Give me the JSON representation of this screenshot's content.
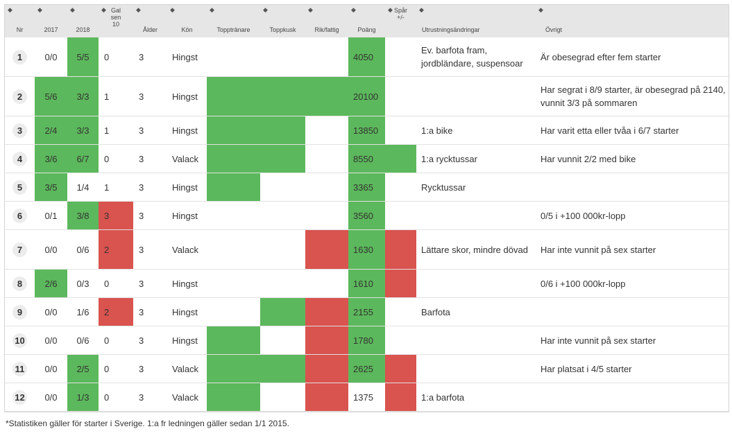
{
  "sort_icon": "sort-updown-icon",
  "colors": {
    "good": "#5cb85c",
    "bad": "#d9534f",
    "header_bg": "#e6e6e6"
  },
  "headers": {
    "nr": "Nr",
    "y2017": "2017",
    "y2018": "2018",
    "galsen": "Gal sen 10",
    "alder": "Ålder",
    "kon": "Kön",
    "topptranare": "Topptränare",
    "toppkusk": "Toppkusk",
    "rikfattig": "Rik/fattig",
    "poang": "Poäng",
    "spar": "Spår +/-",
    "utrustning": "Utrustningsändringar",
    "ovrigt": "Övrigt"
  },
  "rows": [
    {
      "nr": "1",
      "y2017": "0/0",
      "y2018": "5/5",
      "galsen": "0",
      "alder": "3",
      "kon": "Hingst",
      "poang": "4050",
      "utrustning": "Ev. barfota fram, jordbländare, suspensoar",
      "ovrigt": "Är obesegrad efter fem starter"
    },
    {
      "nr": "2",
      "y2017": "5/6",
      "y2018": "3/3",
      "galsen": "1",
      "alder": "3",
      "kon": "Hingst",
      "poang": "20100",
      "utrustning": "",
      "ovrigt": "Har segrat i 8/9 starter, är obesegrad på 2140, vunnit 3/3 på sommaren"
    },
    {
      "nr": "3",
      "y2017": "2/4",
      "y2018": "3/3",
      "galsen": "1",
      "alder": "3",
      "kon": "Hingst",
      "poang": "13850",
      "utrustning": "1:a bike",
      "ovrigt": "Har varit etta eller tvåa i 6/7 starter"
    },
    {
      "nr": "4",
      "y2017": "3/6",
      "y2018": "6/7",
      "galsen": "0",
      "alder": "3",
      "kon": "Valack",
      "poang": "8550",
      "utrustning": "1:a rycktussar",
      "ovrigt": "Har vunnit 2/2 med bike"
    },
    {
      "nr": "5",
      "y2017": "3/5",
      "y2018": "1/4",
      "galsen": "1",
      "alder": "3",
      "kon": "Hingst",
      "poang": "3365",
      "utrustning": "Rycktussar",
      "ovrigt": ""
    },
    {
      "nr": "6",
      "y2017": "0/1",
      "y2018": "3/8",
      "galsen": "3",
      "alder": "3",
      "kon": "Hingst",
      "poang": "3560",
      "utrustning": "",
      "ovrigt": "0/5 i +100 000kr-lopp"
    },
    {
      "nr": "7",
      "y2017": "0/0",
      "y2018": "0/6",
      "galsen": "2",
      "alder": "3",
      "kon": "Valack",
      "poang": "1630",
      "utrustning": "Lättare skor, mindre dövad",
      "ovrigt": "Har inte vunnit på sex starter"
    },
    {
      "nr": "8",
      "y2017": "2/6",
      "y2018": "0/3",
      "galsen": "0",
      "alder": "3",
      "kon": "Hingst",
      "poang": "1610",
      "utrustning": "",
      "ovrigt": "0/6 i +100 000kr-lopp"
    },
    {
      "nr": "9",
      "y2017": "0/0",
      "y2018": "1/6",
      "galsen": "2",
      "alder": "3",
      "kon": "Hingst",
      "poang": "2155",
      "utrustning": "Barfota",
      "ovrigt": ""
    },
    {
      "nr": "10",
      "y2017": "0/0",
      "y2018": "0/6",
      "galsen": "0",
      "alder": "3",
      "kon": "Hingst",
      "poang": "1780",
      "utrustning": "",
      "ovrigt": "Har inte vunnit på sex starter"
    },
    {
      "nr": "11",
      "y2017": "0/0",
      "y2018": "2/5",
      "galsen": "0",
      "alder": "3",
      "kon": "Valack",
      "poang": "2625",
      "utrustning": "",
      "ovrigt": "Har platsat i 4/5 starter"
    },
    {
      "nr": "12",
      "y2017": "0/0",
      "y2018": "1/3",
      "galsen": "0",
      "alder": "3",
      "kon": "Valack",
      "poang": "1375",
      "utrustning": "1:a barfota",
      "ovrigt": ""
    }
  ],
  "footnote": "*Statistiken gäller för starter i Sverige. 1:a fr ledningen gäller sedan 1/1 2015."
}
